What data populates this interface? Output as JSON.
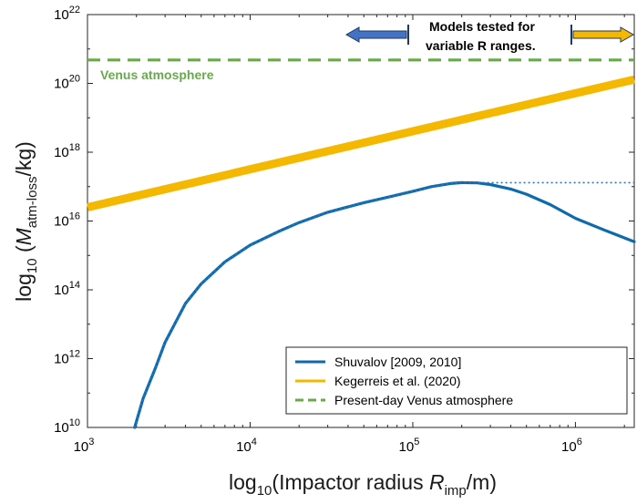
{
  "chart_data": {
    "type": "line",
    "xscale": "log",
    "yscale": "log",
    "xlim": [
      1000,
      2300000
    ],
    "ylim": [
      10000000000.0,
      1e+22
    ],
    "xticks": [
      {
        "value": 1000,
        "base": "10",
        "exp": "3"
      },
      {
        "value": 10000,
        "base": "10",
        "exp": "4"
      },
      {
        "value": 100000,
        "base": "10",
        "exp": "5"
      },
      {
        "value": 1000000,
        "base": "10",
        "exp": "6"
      }
    ],
    "yticks": [
      {
        "value": 10000000000.0,
        "base": "10",
        "exp": "10"
      },
      {
        "value": 1000000000000.0,
        "base": "10",
        "exp": "12"
      },
      {
        "value": 100000000000000.0,
        "base": "10",
        "exp": "14"
      },
      {
        "value": 1e+16,
        "base": "10",
        "exp": "16"
      },
      {
        "value": 1e+18,
        "base": "10",
        "exp": "18"
      },
      {
        "value": 1e+20,
        "base": "10",
        "exp": "20"
      },
      {
        "value": 1e+22,
        "base": "10",
        "exp": "22"
      }
    ],
    "xlabel": {
      "pre": "log",
      "sub1": "10",
      "mid": "(Impactor radius ",
      "var": "R",
      "sub2": "imp",
      "post": "/m)"
    },
    "ylabel": {
      "pre": "log",
      "sub1": "10",
      "mid": " (",
      "var": "M",
      "sub2": "atm-loss",
      "post": "/kg)"
    },
    "series": [
      {
        "name": "Shuvalov [2009, 2010]",
        "color": "#0c6aad",
        "style": "solid",
        "x": [
          1950,
          2200,
          2600,
          3000,
          4000,
          5000,
          7000,
          10000,
          15000,
          20000,
          30000,
          50000,
          70000,
          100000,
          130000,
          170000,
          200000,
          250000,
          300000,
          400000,
          500000,
          700000,
          1000000,
          1500000,
          2300000
        ],
        "y": [
          10000000000.0,
          70000000000.0,
          500000000000.0,
          3000000000000.0,
          40000000000000.0,
          150000000000000.0,
          650000000000000.0,
          2000000000000000.0,
          5000000000000000.0,
          9000000000000000.0,
          1.8e+16,
          3.4e+16,
          4.9e+16,
          7.3e+16,
          1e+17,
          1.23e+17,
          1.3e+17,
          1.28e+17,
          1.15e+17,
          8.5e+16,
          6e+16,
          3e+16,
          1.2e+16,
          5500000000000000.0,
          2500000000000000.0
        ]
      },
      {
        "name": "Kegerreis et al. (2020)",
        "color": "#f5b800",
        "style": "solid",
        "x": [
          1000,
          2300000
        ],
        "y": [
          2.5e+16,
          1.3e+20
        ]
      },
      {
        "name": "Present-day Venus atmosphere",
        "color": "#6aa84f",
        "style": "dashed",
        "x": [
          1000,
          2300000
        ],
        "y": [
          4.8e+20,
          4.8e+20
        ]
      },
      {
        "color": "#2e75b6",
        "style": "dotted",
        "x": [
          1950,
          2200,
          2600,
          3000,
          4000,
          5000,
          7000,
          10000,
          15000,
          20000,
          30000,
          50000,
          70000,
          100000,
          130000,
          170000,
          200000,
          300000,
          1000000,
          2300000
        ],
        "y": [
          10000000000.0,
          70000000000.0,
          500000000000.0,
          3000000000000.0,
          40000000000000.0,
          150000000000000.0,
          650000000000000.0,
          2000000000000000.0,
          5000000000000000.0,
          9000000000000000.0,
          1.8e+16,
          3.4e+16,
          4.9e+16,
          7.3e+16,
          1e+17,
          1.23e+17,
          1.3e+17,
          1.3e+17,
          1.3e+17,
          1.3e+17
        ]
      }
    ],
    "annotations": {
      "models_line1": "Models tested for",
      "models_line2": "variable R ranges.",
      "venus_label": "Venus atmosphere"
    },
    "legend": {
      "placement": "bottom-right",
      "entries": [
        "Shuvalov [2009, 2010]",
        "Kegerreis et al. (2020)",
        "Present-day Venus atmosphere"
      ]
    },
    "arrow_colors": {
      "left": "#4472c4",
      "right": "#f5b800",
      "outline": "#1f3864"
    },
    "grid": false
  }
}
